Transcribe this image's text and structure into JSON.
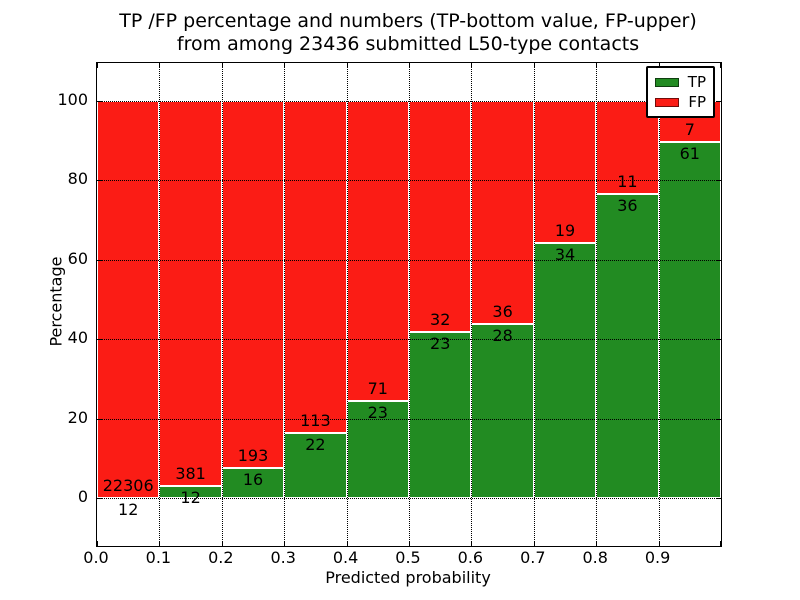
{
  "figure": {
    "background": "#ffffff",
    "text_color": "#000000"
  },
  "chart_data": {
    "type": "stacked_bar_percentage",
    "title_line1": "TP /FP percentage and numbers (TP-bottom value, FP-upper)",
    "title_line2": "from among 23436 submitted L50-type contacts",
    "total_submitted_contacts": 23436,
    "xlabel": "Predicted probability",
    "ylabel": "Percentage",
    "x_tick_labels": [
      "0.0",
      "0.1",
      "0.2",
      "0.3",
      "0.4",
      "0.5",
      "0.6",
      "0.7",
      "0.8",
      "0.9"
    ],
    "x_tick_values": [
      0.0,
      0.1,
      0.2,
      0.3,
      0.4,
      0.5,
      0.6,
      0.7,
      0.8,
      0.9
    ],
    "y_tick_labels": [
      "0",
      "20",
      "40",
      "60",
      "80",
      "100"
    ],
    "y_tick_values": [
      0,
      20,
      40,
      60,
      80,
      100
    ],
    "xlim": [
      0.0,
      1.0
    ],
    "ylim_percent": [
      -12.1,
      109.6
    ],
    "grid_style": "dotted",
    "bar_width_probability": 0.1,
    "bins": [
      {
        "x0": 0.0,
        "x1": 0.1,
        "tp": 12,
        "fp": 22306,
        "tp_percent": 0.05
      },
      {
        "x0": 0.1,
        "x1": 0.2,
        "tp": 12,
        "fp": 381,
        "tp_percent": 3.05
      },
      {
        "x0": 0.2,
        "x1": 0.3,
        "tp": 16,
        "fp": 193,
        "tp_percent": 7.66
      },
      {
        "x0": 0.3,
        "x1": 0.4,
        "tp": 22,
        "fp": 113,
        "tp_percent": 16.3
      },
      {
        "x0": 0.4,
        "x1": 0.5,
        "tp": 23,
        "fp": 71,
        "tp_percent": 24.47
      },
      {
        "x0": 0.5,
        "x1": 0.6,
        "tp": 23,
        "fp": 32,
        "tp_percent": 41.82
      },
      {
        "x0": 0.6,
        "x1": 0.7,
        "tp": 28,
        "fp": 36,
        "tp_percent": 43.75
      },
      {
        "x0": 0.7,
        "x1": 0.8,
        "tp": 34,
        "fp": 19,
        "tp_percent": 64.15
      },
      {
        "x0": 0.8,
        "x1": 0.9,
        "tp": 36,
        "fp": 11,
        "tp_percent": 76.6
      },
      {
        "x0": 0.9,
        "x1": 1.0,
        "tp": 61,
        "fp": 7,
        "tp_percent": 89.71
      }
    ],
    "legend": [
      {
        "label": "TP",
        "color": "#228b22"
      },
      {
        "label": "FP",
        "color": "#fb1c15"
      }
    ],
    "legend_position": "upper right"
  }
}
